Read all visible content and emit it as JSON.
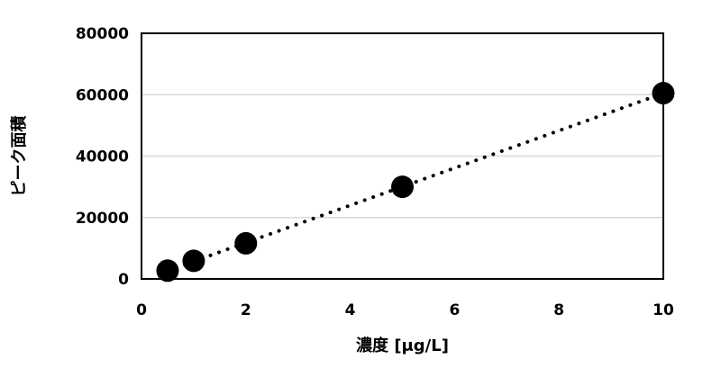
{
  "chart_data": {
    "type": "scatter",
    "xlabel": "濃度 [μg/L]",
    "ylabel": "ピーク面積",
    "xlim": [
      0,
      10
    ],
    "ylim": [
      0,
      80000
    ],
    "x_ticks": [
      0,
      2,
      4,
      6,
      8,
      10
    ],
    "y_ticks": [
      0,
      20000,
      40000,
      60000,
      80000
    ],
    "grid": {
      "horizontal": true,
      "vertical": false
    },
    "points": [
      {
        "x": 0.5,
        "y": 2700
      },
      {
        "x": 1,
        "y": 5900
      },
      {
        "x": 2,
        "y": 11600
      },
      {
        "x": 5,
        "y": 30000
      },
      {
        "x": 10,
        "y": 60500
      }
    ],
    "trendline": {
      "style": "dotted",
      "type": "linear",
      "x_range": [
        0.5,
        10
      ]
    },
    "colors": {
      "marker": "#000000",
      "gridline": "#d9d9d9",
      "axis": "#000000"
    }
  }
}
